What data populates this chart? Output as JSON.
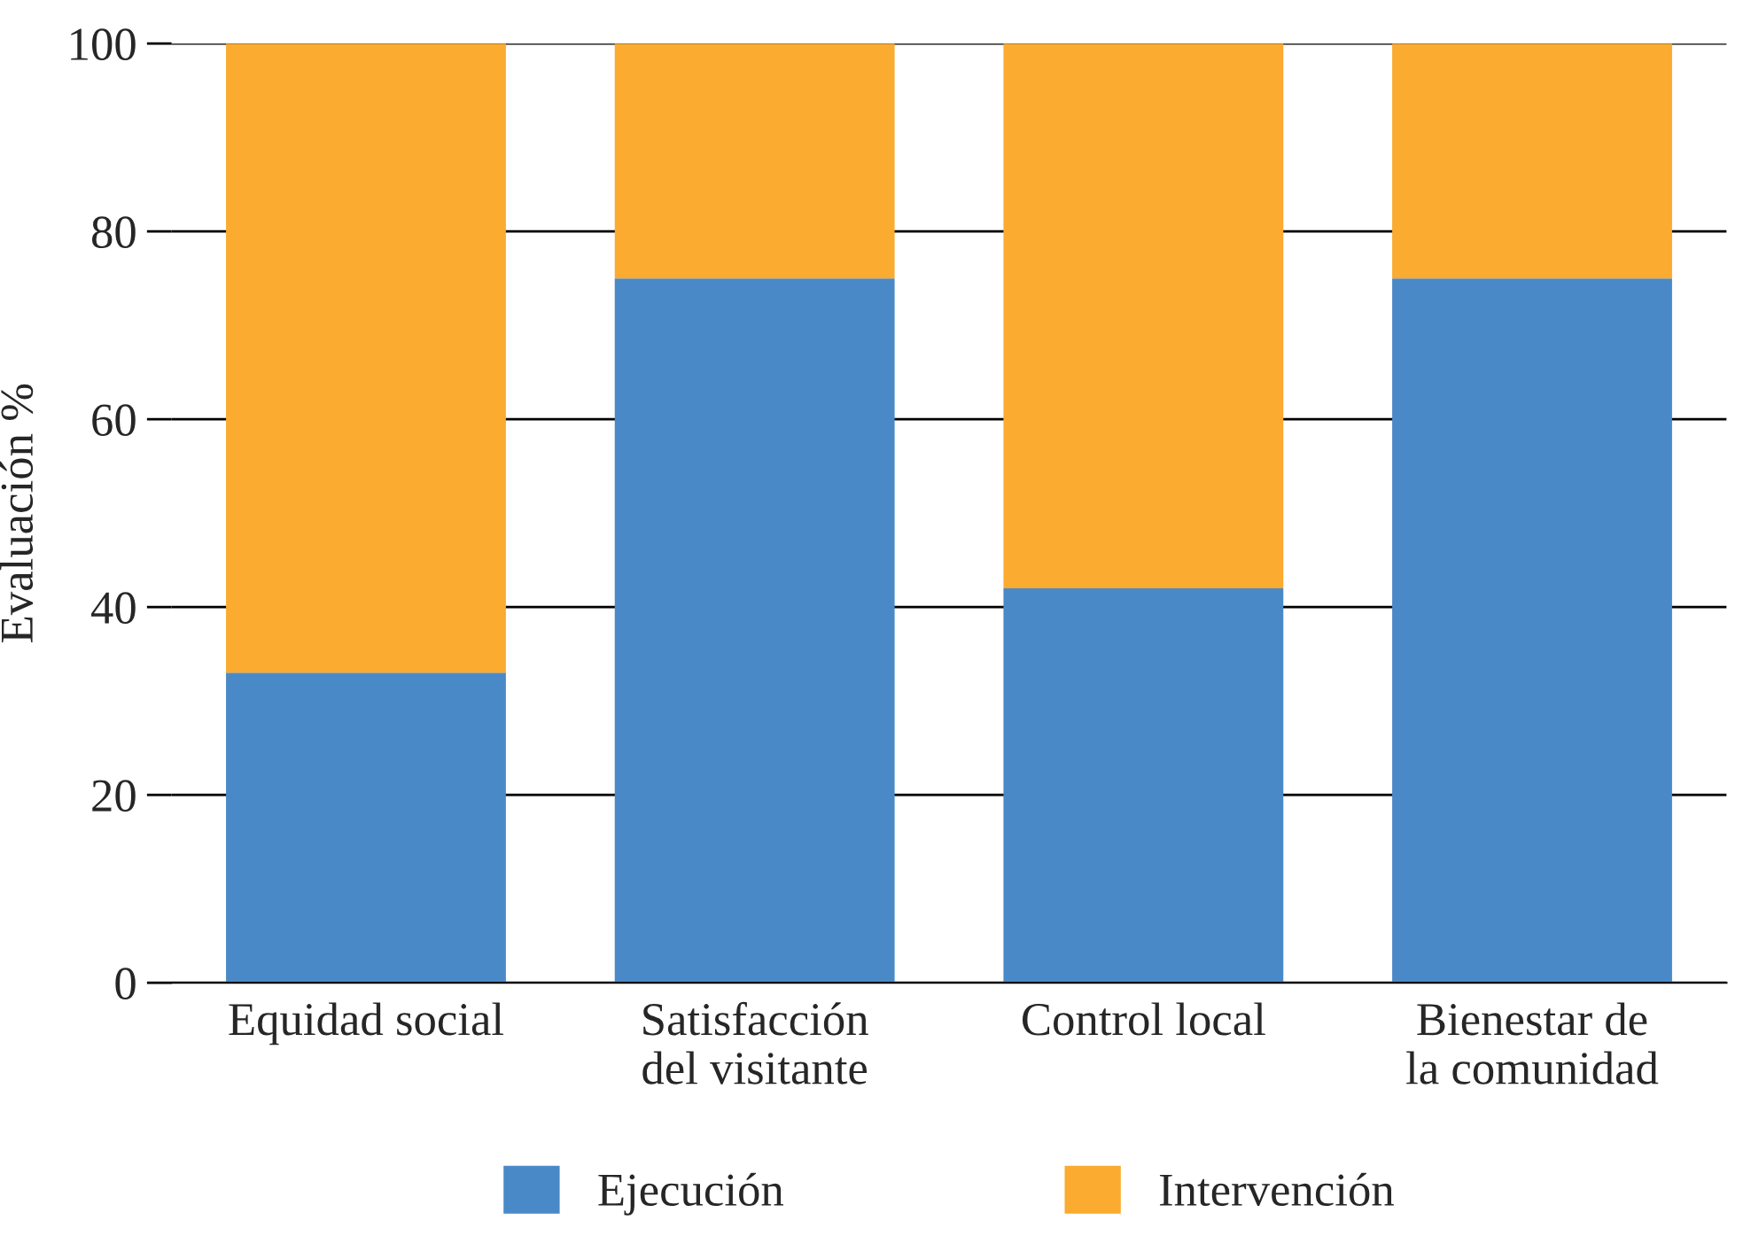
{
  "chart_data": {
    "type": "bar",
    "ylabel": "Evaluación %",
    "categories": [
      "Equidad social",
      "Satisfacción\ndel visitante",
      "Control local",
      "Bienestar de\nla comunidad"
    ],
    "series": [
      {
        "name": "Ejecución",
        "color": "#4a89c8",
        "values": [
          33,
          75,
          42,
          75
        ]
      },
      {
        "name": "Intervención",
        "color": "#faab30",
        "values": [
          67,
          25,
          58,
          25
        ]
      }
    ],
    "stacked": true,
    "ylim": [
      0,
      100
    ],
    "yticks": [
      0,
      20,
      40,
      60,
      80,
      100
    ],
    "grid": "y",
    "legend": "bottom"
  }
}
